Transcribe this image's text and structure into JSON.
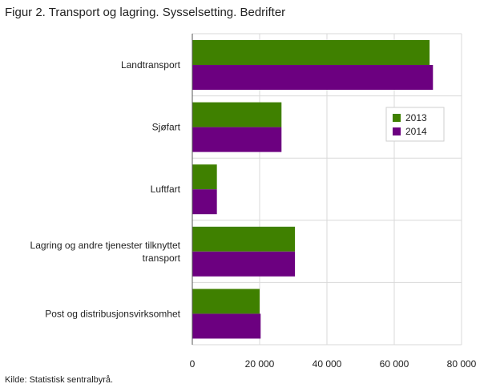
{
  "title": "Figur 2. Transport og lagring. Sysselsetting. Bedrifter",
  "source": "Kilde: Statistisk sentralbyrå.",
  "chart_data": {
    "type": "bar",
    "orientation": "horizontal",
    "title": "Figur 2. Transport og lagring. Sysselsetting. Bedrifter",
    "categories": [
      [
        "Landtransport"
      ],
      [
        "Sjøfart"
      ],
      [
        "Luftfart"
      ],
      [
        "Lagring og andre tjenester tilknyttet",
        "transport"
      ],
      [
        "Post og distribusjonsvirksomhet"
      ]
    ],
    "series": [
      {
        "name": "2013",
        "color": "#3f8000",
        "values": [
          70500,
          26500,
          7300,
          30500,
          20000
        ]
      },
      {
        "name": "2014",
        "color": "#6c0080",
        "values": [
          71500,
          26500,
          7300,
          30500,
          20300
        ]
      }
    ],
    "xlim": [
      0,
      80000
    ],
    "xticks": [
      0,
      20000,
      40000,
      60000,
      80000
    ],
    "xtick_labels": [
      "0",
      "20 000",
      "40 000",
      "60 000",
      "80 000"
    ],
    "grid": true,
    "legend_position": "top-right"
  }
}
